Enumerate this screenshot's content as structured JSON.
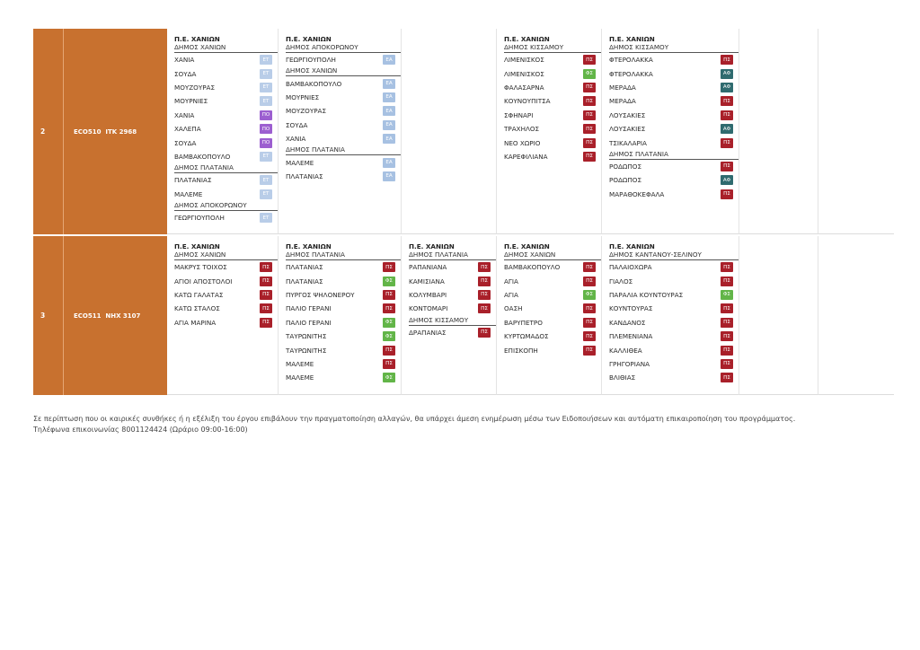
{
  "badge_colors": {
    "ΕΤ": "#b9cde8",
    "ΠΟ": "#9c5fd0",
    "ΠΣ": "#a9202a",
    "ΦΣ": "#62b548",
    "ΑΦ": "#2f6b6f",
    "ΕΑ": "#a7c1e2"
  },
  "rows": [
    {
      "num": "2",
      "route": "ECO510  ITK 2968",
      "columns": [
        {
          "items": [
            {
              "t": "pe",
              "text": "Π.Ε. ΧΑΝΙΩΝ"
            },
            {
              "t": "muni",
              "text": "ΔΗΜΟΣ ΧΑΝΙΩΝ"
            },
            {
              "t": "item",
              "text": "ΧΑΝΙΑ",
              "badge": "ΕΤ"
            },
            {
              "t": "item",
              "text": "ΣΟΥΔΑ",
              "badge": "ΕΤ"
            },
            {
              "t": "item",
              "text": "ΜΟΥΖΟΥΡΑΣ",
              "badge": "ΕΤ"
            },
            {
              "t": "item",
              "text": "ΜΟΥΡΝΙΕΣ",
              "badge": "ΕΤ"
            },
            {
              "t": "item",
              "text": "ΧΑΝΙΑ",
              "badge": "ΠΟ"
            },
            {
              "t": "item",
              "text": "ΧΑΛΕΠΑ",
              "badge": "ΠΟ"
            },
            {
              "t": "item",
              "text": "ΣΟΥΔΑ",
              "badge": "ΠΟ"
            },
            {
              "t": "item",
              "text": "ΒΑΜΒΑΚΟΠΟΥΛΟ",
              "badge": "ΕΤ"
            },
            {
              "t": "muni",
              "text": "ΔΗΜΟΣ ΠΛΑΤΑΝΙΑ"
            },
            {
              "t": "item",
              "text": "ΠΛΑΤΑΝΙΑΣ",
              "badge": "ΕΤ"
            },
            {
              "t": "item",
              "text": "ΜΑΛΕΜΕ",
              "badge": "ΕΤ"
            },
            {
              "t": "muni",
              "text": "ΔΗΜΟΣ ΑΠΟΚΟΡΩΝΟΥ"
            },
            {
              "t": "item",
              "text": "ΓΕΩΡΓΙΟΥΠΟΛΗ",
              "badge": "ΕΤ"
            }
          ]
        },
        {
          "items": [
            {
              "t": "pe",
              "text": "Π.Ε. ΧΑΝΙΩΝ"
            },
            {
              "t": "muni",
              "text": "ΔΗΜΟΣ ΑΠΟΚΟΡΩΝΟΥ"
            },
            {
              "t": "item",
              "text": "ΓΕΩΡΓΙΟΥΠΟΛΗ",
              "badge": "ΕΑ"
            },
            {
              "t": "muni",
              "text": "ΔΗΜΟΣ ΧΑΝΙΩΝ"
            },
            {
              "t": "item",
              "text": "ΒΑΜΒΑΚΟΠΟΥΛΟ",
              "badge": "ΕΑ"
            },
            {
              "t": "item",
              "text": "ΜΟΥΡΝΙΕΣ",
              "badge": "ΕΑ"
            },
            {
              "t": "item",
              "text": "ΜΟΥΖΟΥΡΑΣ",
              "badge": "ΕΑ"
            },
            {
              "t": "item",
              "text": "ΣΟΥΔΑ",
              "badge": "ΕΑ"
            },
            {
              "t": "item",
              "text": "ΧΑΝΙΑ",
              "badge": "ΕΑ"
            },
            {
              "t": "muni",
              "text": "ΔΗΜΟΣ ΠΛΑΤΑΝΙΑ"
            },
            {
              "t": "item",
              "text": "ΜΑΛΕΜΕ",
              "badge": "ΕΑ"
            },
            {
              "t": "item",
              "text": "ΠΛΑΤΑΝΙΑΣ",
              "badge": "ΕΑ"
            }
          ]
        },
        {
          "items": []
        },
        {
          "items": [
            {
              "t": "pe",
              "text": "Π.Ε. ΧΑΝΙΩΝ"
            },
            {
              "t": "muni",
              "text": "ΔΗΜΟΣ ΚΙΣΣΑΜΟΥ"
            },
            {
              "t": "item",
              "text": "ΛΙΜΕΝΙΣΚΟΣ",
              "badge": "ΠΣ"
            },
            {
              "t": "item",
              "text": "ΛΙΜΕΝΙΣΚΟΣ",
              "badge": "ΦΣ"
            },
            {
              "t": "item",
              "text": "ΦΑΛΑΣΑΡΝΑ",
              "badge": "ΠΣ"
            },
            {
              "t": "item",
              "text": "ΚΟΥΝΟΥΠΙΤΣΑ",
              "badge": "ΠΣ"
            },
            {
              "t": "item",
              "text": "ΣΦΗΝΑΡΙ",
              "badge": "ΠΣ"
            },
            {
              "t": "item",
              "text": "ΤΡΑΧΗΛΟΣ",
              "badge": "ΠΣ"
            },
            {
              "t": "item",
              "text": "ΝΕΟ ΧΩΡΙΟ",
              "badge": "ΠΣ"
            },
            {
              "t": "item",
              "text": "ΚΑΡΕΦΙΛΙΑΝΑ",
              "badge": "ΠΣ"
            }
          ]
        },
        {
          "items": [
            {
              "t": "pe",
              "text": "Π.Ε. ΧΑΝΙΩΝ"
            },
            {
              "t": "muni",
              "text": "ΔΗΜΟΣ ΚΙΣΣΑΜΟΥ"
            },
            {
              "t": "item",
              "text": "ΦΤΕΡΟΛΑΚΚΑ",
              "badge": "ΠΣ"
            },
            {
              "t": "item",
              "text": "ΦΤΕΡΟΛΑΚΚΑ",
              "badge": "ΑΦ"
            },
            {
              "t": "item",
              "text": "ΜΕΡΑΔΑ",
              "badge": "ΑΦ"
            },
            {
              "t": "item",
              "text": "ΜΕΡΑΔΑ",
              "badge": "ΠΣ"
            },
            {
              "t": "item",
              "text": "ΛΟΥΣΑΚΙΕΣ",
              "badge": "ΠΣ"
            },
            {
              "t": "item",
              "text": "ΛΟΥΣΑΚΙΕΣ",
              "badge": "ΑΦ"
            },
            {
              "t": "item",
              "text": "ΤΣΙΚΑΛΑΡΙΑ",
              "badge": "ΠΣ"
            },
            {
              "t": "muni",
              "text": "ΔΗΜΟΣ ΠΛΑΤΑΝΙΑ"
            },
            {
              "t": "item",
              "text": "ΡΟΔΩΠΟΣ",
              "badge": "ΠΣ"
            },
            {
              "t": "item",
              "text": "ΡΟΔΩΠΟΣ",
              "badge": "ΑΦ"
            },
            {
              "t": "item",
              "text": "ΜΑΡΑΘΟΚΕΦΑΛΑ",
              "badge": "ΠΣ"
            }
          ]
        },
        {
          "items": []
        },
        {
          "items": []
        }
      ]
    },
    {
      "num": "3",
      "route": "ECO511  NHX 3107",
      "columns": [
        {
          "items": [
            {
              "t": "pe",
              "text": "Π.Ε. ΧΑΝΙΩΝ"
            },
            {
              "t": "muni",
              "text": "ΔΗΜΟΣ ΧΑΝΙΩΝ"
            },
            {
              "t": "item",
              "text": "ΜΑΚΡΥΣ ΤΟΙΧΟΣ",
              "badge": "ΠΣ"
            },
            {
              "t": "item",
              "text": "ΑΓΙΟΙ ΑΠΟΣΤΟΛΟΙ",
              "badge": "ΠΣ"
            },
            {
              "t": "item",
              "text": "ΚΑΤΩ ΓΑΛΑΤΑΣ",
              "badge": "ΠΣ"
            },
            {
              "t": "item",
              "text": "ΚΑΤΩ ΣΤΑΛΟΣ",
              "badge": "ΠΣ"
            },
            {
              "t": "item",
              "text": "ΑΓΙΑ ΜΑΡΙΝΑ",
              "badge": "ΠΣ"
            }
          ]
        },
        {
          "items": [
            {
              "t": "pe",
              "text": "Π.Ε. ΧΑΝΙΩΝ"
            },
            {
              "t": "muni",
              "text": "ΔΗΜΟΣ ΠΛΑΤΑΝΙΑ"
            },
            {
              "t": "item",
              "text": "ΠΛΑΤΑΝΙΑΣ",
              "badge": "ΠΣ"
            },
            {
              "t": "item",
              "text": "ΠΛΑΤΑΝΙΑΣ",
              "badge": "ΦΣ"
            },
            {
              "t": "item",
              "text": "ΠΥΡΓΟΣ ΨΗΛΟΝΕΡΟΥ",
              "badge": "ΠΣ"
            },
            {
              "t": "item",
              "text": "ΠΑΛΙΟ ΓΕΡΑΝΙ",
              "badge": "ΠΣ"
            },
            {
              "t": "item",
              "text": "ΠΑΛΙΟ ΓΕΡΑΝΙ",
              "badge": "ΦΣ"
            },
            {
              "t": "item",
              "text": "ΤΑΥΡΩΝΙΤΗΣ",
              "badge": "ΦΣ"
            },
            {
              "t": "item",
              "text": "ΤΑΥΡΩΝΙΤΗΣ",
              "badge": "ΠΣ"
            },
            {
              "t": "item",
              "text": "ΜΑΛΕΜΕ",
              "badge": "ΠΣ"
            },
            {
              "t": "item",
              "text": "ΜΑΛΕΜΕ",
              "badge": "ΦΣ"
            }
          ]
        },
        {
          "items": [
            {
              "t": "pe",
              "text": "Π.Ε. ΧΑΝΙΩΝ"
            },
            {
              "t": "muni",
              "text": "ΔΗΜΟΣ ΠΛΑΤΑΝΙΑ"
            },
            {
              "t": "item",
              "text": "ΡΑΠΑΝΙΑΝΑ",
              "badge": "ΠΣ"
            },
            {
              "t": "item",
              "text": "ΚΑΜΙΣΙΑΝΑ",
              "badge": "ΠΣ"
            },
            {
              "t": "item",
              "text": "ΚΟΛΥΜΒΑΡΙ",
              "badge": "ΠΣ"
            },
            {
              "t": "item",
              "text": "ΚΟΝΤΟΜΑΡΙ",
              "badge": "ΠΣ"
            },
            {
              "t": "muni",
              "text": "ΔΗΜΟΣ ΚΙΣΣΑΜΟΥ"
            },
            {
              "t": "item",
              "text": "ΔΡΑΠΑΝΙΑΣ",
              "badge": "ΠΣ"
            }
          ]
        },
        {
          "items": [
            {
              "t": "pe",
              "text": "Π.Ε. ΧΑΝΙΩΝ"
            },
            {
              "t": "muni",
              "text": "ΔΗΜΟΣ ΧΑΝΙΩΝ"
            },
            {
              "t": "item",
              "text": "ΒΑΜΒΑΚΟΠΟΥΛΟ",
              "badge": "ΠΣ"
            },
            {
              "t": "item",
              "text": "ΑΓΙΑ",
              "badge": "ΠΣ"
            },
            {
              "t": "item",
              "text": "ΑΓΙΑ",
              "badge": "ΦΣ"
            },
            {
              "t": "item",
              "text": "ΟΑΣΗ",
              "badge": "ΠΣ"
            },
            {
              "t": "item",
              "text": "ΒΑΡΥΠΕΤΡΟ",
              "badge": "ΠΣ"
            },
            {
              "t": "item",
              "text": "ΚΥΡΤΩΜΑΔΟΣ",
              "badge": "ΠΣ"
            },
            {
              "t": "item",
              "text": "ΕΠΙΣΚΟΠΗ",
              "badge": "ΠΣ"
            }
          ]
        },
        {
          "items": [
            {
              "t": "pe",
              "text": "Π.Ε. ΧΑΝΙΩΝ"
            },
            {
              "t": "muni",
              "text": "ΔΗΜΟΣ ΚΑΝΤΑΝΟΥ-ΣΕΛΙΝΟΥ"
            },
            {
              "t": "item",
              "text": "ΠΑΛΑΙΟΧΩΡΑ",
              "badge": "ΠΣ"
            },
            {
              "t": "item",
              "text": "ΓΙΑΛΟΣ",
              "badge": "ΠΣ"
            },
            {
              "t": "item",
              "text": "ΠΑΡΑΛΙΑ ΚΟΥΝΤΟΥΡΑΣ",
              "badge": "ΦΣ"
            },
            {
              "t": "item",
              "text": "ΚΟΥΝΤΟΥΡΑΣ",
              "badge": "ΠΣ"
            },
            {
              "t": "item",
              "text": "ΚΑΝΔΑΝΟΣ",
              "badge": "ΠΣ"
            },
            {
              "t": "item",
              "text": "ΠΛΕΜΕΝΙΑΝΑ",
              "badge": "ΠΣ"
            },
            {
              "t": "item",
              "text": "ΚΑΛΛΙΘΕΑ",
              "badge": "ΠΣ"
            },
            {
              "t": "item",
              "text": "ΓΡΗΓΟΡΙΑΝΑ",
              "badge": "ΠΣ"
            },
            {
              "t": "item",
              "text": "ΒΛΙΘΙΑΣ",
              "badge": "ΠΣ"
            }
          ]
        },
        {
          "items": []
        },
        {
          "items": []
        }
      ]
    }
  ],
  "note": {
    "line1": "Σε περίπτωση που οι καιρικές συνθήκες ή η εξέλιξη του έργου επιβάλουν την πραγματοποίηση αλλαγών, θα υπάρχει άμεση ενημέρωση μέσω των Ειδοποιήσεων και αυτόματη επικαιροποίηση του προγράμματος.",
    "line2": "Τηλέφωνα επικοινωνίας 8001124424 (Ωράριο 09:00-16:00)"
  }
}
